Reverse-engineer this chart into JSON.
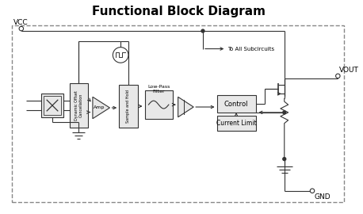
{
  "title": "Functional Block Diagram",
  "title_fontsize": 11,
  "title_fontweight": "bold",
  "bg_color": "#ffffff",
  "line_color": "#333333",
  "vcc_label": "VCC",
  "vout_label": "VOUT",
  "gnd_label": "GND",
  "to_all_label": "To All Subcircuits",
  "amp_label": "Amp",
  "control_label": "Control",
  "cl_label": "Current Limit",
  "doc_label": "Dynamic Offset\nCancellation",
  "sh_label": "Sample and Hold",
  "lp_label1": "Low-Pass",
  "lp_label2": "Filter"
}
